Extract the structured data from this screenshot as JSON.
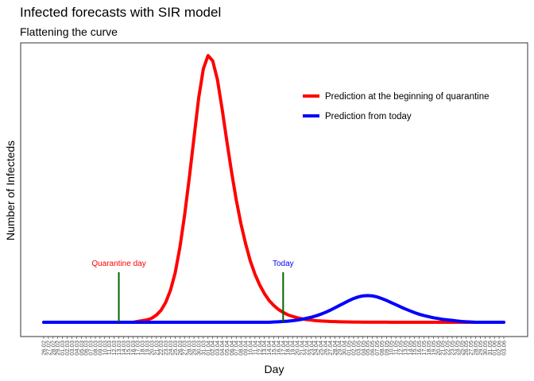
{
  "chart_data": {
    "type": "line",
    "title": "Infected forecasts with SIR model",
    "subtitle": "Flattening the curve",
    "xlabel": "Day",
    "ylabel": "Number of Infecteds",
    "yaxis_ticks_shown": false,
    "grid": false,
    "legend_position": "top-right",
    "x": [
      "26.02",
      "27.02",
      "28.02",
      "29.02",
      "01.03",
      "02.03",
      "03.03",
      "04.03",
      "05.03",
      "06.03",
      "07.03",
      "08.03",
      "09.03",
      "10.03",
      "11.03",
      "12.03",
      "13.03",
      "14.03",
      "15.03",
      "16.03",
      "17.03",
      "18.03",
      "19.03",
      "20.03",
      "21.03",
      "22.03",
      "23.03",
      "24.03",
      "25.03",
      "26.03",
      "27.03",
      "28.03",
      "29.03",
      "30.03",
      "31.03",
      "01.04",
      "02.04",
      "03.04",
      "04.04",
      "05.04",
      "06.04",
      "07.04",
      "08.04",
      "09.04",
      "10.04",
      "11.04",
      "12.04",
      "13.04",
      "14.04",
      "15.04",
      "16.04",
      "17.04",
      "18.04",
      "19.04",
      "20.04",
      "21.04",
      "22.04",
      "23.04",
      "24.04",
      "25.04",
      "26.04",
      "27.04",
      "28.04",
      "29.04",
      "30.04",
      "01.05",
      "02.05",
      "03.05",
      "04.05",
      "05.05",
      "06.05",
      "07.05",
      "08.05",
      "09.05",
      "10.05",
      "11.05",
      "12.05",
      "13.05",
      "14.05",
      "15.05",
      "16.05",
      "17.05",
      "18.05",
      "19.05",
      "20.05",
      "21.05",
      "22.05",
      "23.05",
      "24.05",
      "25.05",
      "26.05",
      "27.05",
      "28.05",
      "29.05",
      "30.05",
      "31.05",
      "01.06",
      "02.06",
      "03.06"
    ],
    "ylim": [
      0,
      100
    ],
    "series": [
      {
        "name": "Prediction at the beginning of quarantine",
        "color": "#ff0000",
        "start_index": 0,
        "values": [
          0,
          0,
          0,
          0,
          0,
          0,
          0,
          0,
          0,
          0,
          0,
          0,
          0,
          0,
          0,
          0,
          0,
          0,
          0,
          0,
          0.3,
          0.6,
          0.9,
          1.5,
          2.7,
          4.5,
          7.5,
          12,
          18.5,
          28,
          40,
          54,
          69,
          84,
          95,
          100,
          98,
          91,
          80,
          68,
          56.5,
          46,
          37,
          29.5,
          23,
          18,
          14,
          10.8,
          8.2,
          6.3,
          4.8,
          3.7,
          2.8,
          2.2,
          1.7,
          1.3,
          1.0,
          0.8,
          0.6,
          0.5,
          0.4,
          0.3,
          0.25,
          0.2,
          0.15,
          0.1,
          0.08,
          0.06,
          0.05,
          0.04,
          0.03,
          0.03,
          0.02,
          0.02,
          0.01,
          0.01,
          0.01,
          0.01,
          0,
          0,
          0,
          0,
          0,
          0,
          0,
          0,
          0,
          0,
          0,
          0,
          0,
          0,
          0,
          0,
          0,
          0,
          0,
          0,
          0
        ]
      },
      {
        "name": "Prediction from today",
        "color": "#0000ff",
        "start_index": 0,
        "values": [
          0,
          0,
          0,
          0,
          0,
          0,
          0,
          0,
          0,
          0,
          0,
          0,
          0,
          0,
          0,
          0,
          0,
          0,
          0,
          0,
          0,
          0,
          0,
          0,
          0,
          0,
          0,
          0,
          0,
          0,
          0,
          0,
          0,
          0,
          0,
          0,
          0,
          0,
          0,
          0,
          0,
          0,
          0,
          0,
          0,
          0,
          0,
          0,
          0,
          0.1,
          0.2,
          0.3,
          0.4,
          0.6,
          0.8,
          1.1,
          1.5,
          1.9,
          2.4,
          3.0,
          3.7,
          4.5,
          5.4,
          6.3,
          7.2,
          8.1,
          8.9,
          9.5,
          9.9,
          10.0,
          9.9,
          9.5,
          8.9,
          8.2,
          7.4,
          6.6,
          5.8,
          5.0,
          4.3,
          3.6,
          3.0,
          2.5,
          2.1,
          1.7,
          1.4,
          1.1,
          0.9,
          0.7,
          0.5,
          0.3,
          0.2,
          0.1,
          0,
          0,
          0,
          0,
          0,
          0,
          0
        ]
      }
    ],
    "annotations": [
      {
        "label": "Quarantine day",
        "x_index": 16,
        "color": "#ff0000",
        "line_color": "#006400"
      },
      {
        "label": "Today",
        "x_index": 51,
        "color": "#0000ff",
        "line_color": "#006400"
      }
    ]
  }
}
